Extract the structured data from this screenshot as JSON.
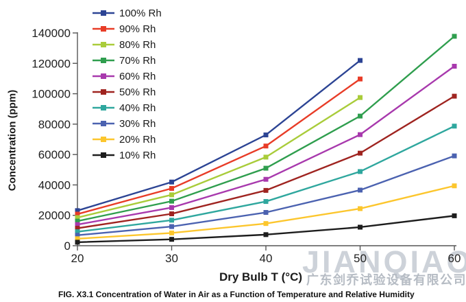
{
  "figure": {
    "caption": "FIG. X3.1 Concentration of Water in Air as a Function of Temperature and Relative Humidity"
  },
  "watermark": {
    "brand": "JIANQIAO",
    "brand_color": "#cdd2d9",
    "company": "广东剑乔试验设备有限公司",
    "company_color": "#b6bcc4"
  },
  "chart_data": {
    "type": "line",
    "title": "",
    "xlabel": "Dry Bulb T (°C)",
    "ylabel": "Concentration (ppm)",
    "xlim": [
      20,
      60
    ],
    "ylim": [
      0,
      140000
    ],
    "xticks": [
      20,
      30,
      40,
      50,
      60
    ],
    "yticks": [
      0,
      20000,
      40000,
      60000,
      80000,
      100000,
      120000,
      140000
    ],
    "grid": false,
    "legend_position": "top-left-inside",
    "marker": "square",
    "axis_color": "#555555",
    "tick_label_color": "#1f1f1f",
    "series": [
      {
        "name": "100% Rh",
        "color": "#2c4494",
        "x": [
          20,
          30,
          40,
          50
        ],
        "values": [
          23100,
          41900,
          72900,
          121900
        ]
      },
      {
        "name": "90% Rh",
        "color": "#e83c27",
        "x": [
          20,
          30,
          40,
          50
        ],
        "values": [
          20800,
          37700,
          65600,
          109700
        ]
      },
      {
        "name": "80% Rh",
        "color": "#a9cc3a",
        "x": [
          20,
          30,
          40,
          50
        ],
        "values": [
          18500,
          33500,
          58300,
          97500
        ]
      },
      {
        "name": "70% Rh",
        "color": "#2f9e4e",
        "x": [
          20,
          30,
          40,
          50,
          60
        ],
        "values": [
          16200,
          29300,
          51000,
          85300,
          137800
        ]
      },
      {
        "name": "60% Rh",
        "color": "#a839ad",
        "x": [
          20,
          30,
          40,
          50,
          60
        ],
        "values": [
          13900,
          25100,
          43700,
          73100,
          118100
        ]
      },
      {
        "name": "50% Rh",
        "color": "#9f2420",
        "x": [
          20,
          30,
          40,
          50,
          60
        ],
        "values": [
          11500,
          21000,
          36400,
          60900,
          98400
        ]
      },
      {
        "name": "40% Rh",
        "color": "#2fa79e",
        "x": [
          20,
          30,
          40,
          50,
          60
        ],
        "values": [
          9200,
          16800,
          29100,
          48800,
          78700
        ]
      },
      {
        "name": "30% Rh",
        "color": "#4b62b0",
        "x": [
          20,
          30,
          40,
          50,
          60
        ],
        "values": [
          6900,
          12600,
          21900,
          36600,
          59100
        ]
      },
      {
        "name": "20% Rh",
        "color": "#fcc62d",
        "x": [
          20,
          30,
          40,
          50,
          60
        ],
        "values": [
          4600,
          8400,
          14600,
          24400,
          39400
        ]
      },
      {
        "name": "10% Rh",
        "color": "#1d1d1d",
        "x": [
          20,
          30,
          40,
          50,
          60
        ],
        "values": [
          2300,
          4200,
          7300,
          12200,
          19700
        ]
      }
    ]
  }
}
